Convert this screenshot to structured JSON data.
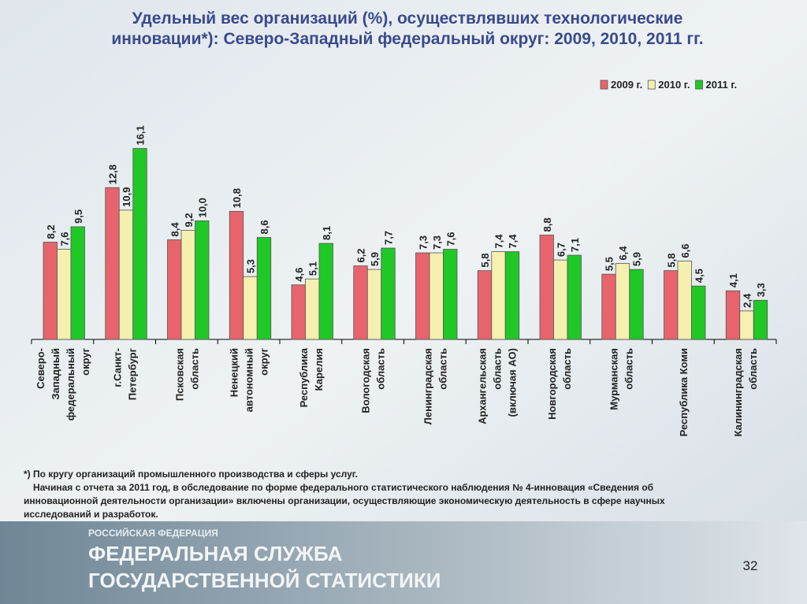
{
  "chart_data": {
    "type": "bar",
    "title": "Удельный вес организаций (%), осуществлявших технологические\nинновации*): Северо-Западный федеральный округ: 2009, 2010, 2011 гг.",
    "categories": [
      "Северо-\nЗападный\nфедеральный\nокруг",
      "г.Санкт-\nПетербург",
      "Псковская\nобласть",
      "Ненецкий\nавтономный\nокруг",
      "Республика\nКарелия",
      "Вологодская\nобласть",
      "Ленинградская\nобласть",
      "Архангельская\nобласть\n(включая АО)",
      "Новгородская\nобласть",
      "Мурманская\nобласть",
      "Республика Коми",
      "Калининградская\nобласть"
    ],
    "series": [
      {
        "name": "2009 г.",
        "color": "#e8646c",
        "values": [
          8.2,
          12.8,
          8.4,
          10.8,
          4.6,
          6.2,
          7.3,
          5.8,
          8.8,
          5.5,
          5.8,
          4.1
        ],
        "value_labels": [
          "8,2",
          "12,8",
          "8,4",
          "10,8",
          "4,6",
          "6,2",
          "7,3",
          "5,8",
          "8,8",
          "5,5",
          "5,8",
          "4,1"
        ]
      },
      {
        "name": "2010 г.",
        "color": "#f5efb0",
        "values": [
          7.6,
          10.9,
          9.2,
          5.3,
          5.1,
          5.9,
          7.3,
          7.4,
          6.7,
          6.4,
          6.6,
          2.4
        ],
        "value_labels": [
          "7,6",
          "10,9",
          "9,2",
          "5,3",
          "5,1",
          "5,9",
          "7,3",
          "7,4",
          "6,7",
          "6,4",
          "6,6",
          "2,4"
        ]
      },
      {
        "name": "2011 г.",
        "color": "#1fc826",
        "values": [
          9.5,
          16.1,
          10.0,
          8.6,
          8.1,
          7.7,
          7.6,
          7.4,
          7.1,
          5.9,
          4.5,
          3.3
        ],
        "value_labels": [
          "9,5",
          "16,1",
          "10,0",
          "8,6",
          "8,1",
          "7,7",
          "7,6",
          "7,4",
          "7,1",
          "5,9",
          "4,5",
          "3,3"
        ]
      }
    ],
    "ylim": [
      0,
      17
    ],
    "legend": "top-right"
  },
  "footnotes": [
    "*) По кругу организаций промышленного производства и сферы услуг.",
    "Начиная с отчета за 2011 год, в обследование по форме федерального статистического наблюдения № 4-инновация «Сведения об",
    "инновационной деятельности организации» включены организации, осуществляющие экономическую деятельность в сфере научных",
    "исследований и разработок."
  ],
  "footer": {
    "top": "РОССИЙСКАЯ ФЕДЕРАЦИЯ",
    "line1": "ФЕДЕРАЛЬНАЯ СЛУЖБА",
    "line2": "ГОСУДАРСТВЕННОЙ СТАТИСТИКИ",
    "page": "32"
  }
}
